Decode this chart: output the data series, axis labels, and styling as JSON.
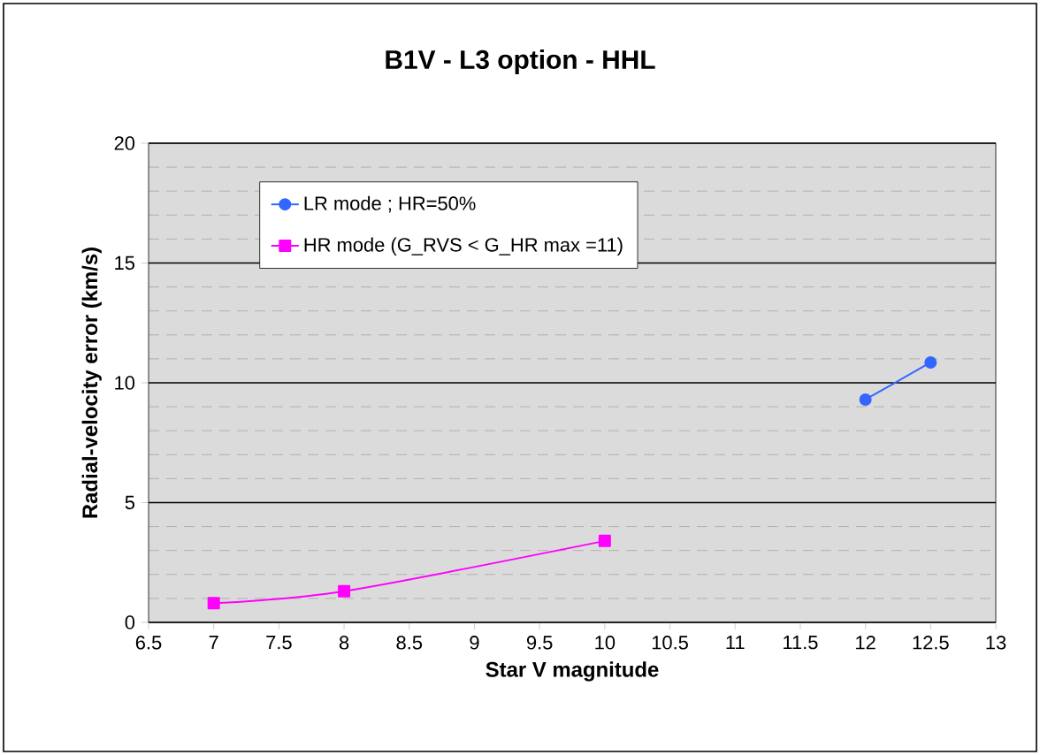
{
  "chart_data": {
    "type": "line",
    "title": "B1V - L3 option - HHL",
    "xlabel": "Star V magnitude",
    "ylabel": "Radial-velocity error (km/s)",
    "series": [
      {
        "name": "LR mode ; HR=50%",
        "color": "#3366ff",
        "marker": "circle",
        "x": [
          12,
          12.5
        ],
        "values": [
          9.3,
          10.85
        ]
      },
      {
        "name": "HR mode (G_RVS < G_HR max =11)",
        "color": "#ff00ff",
        "marker": "square",
        "x": [
          7,
          8,
          10
        ],
        "values": [
          0.8,
          1.3,
          3.4
        ]
      }
    ],
    "xlim": [
      6.5,
      13
    ],
    "xticks": [
      6.5,
      7,
      7.5,
      8,
      8.5,
      9,
      9.5,
      10,
      10.5,
      11,
      11.5,
      12,
      12.5,
      13
    ],
    "ylim": [
      0,
      20
    ],
    "yticks": [
      0,
      5,
      10,
      15,
      20
    ],
    "grid": "y",
    "legend": "top left"
  }
}
